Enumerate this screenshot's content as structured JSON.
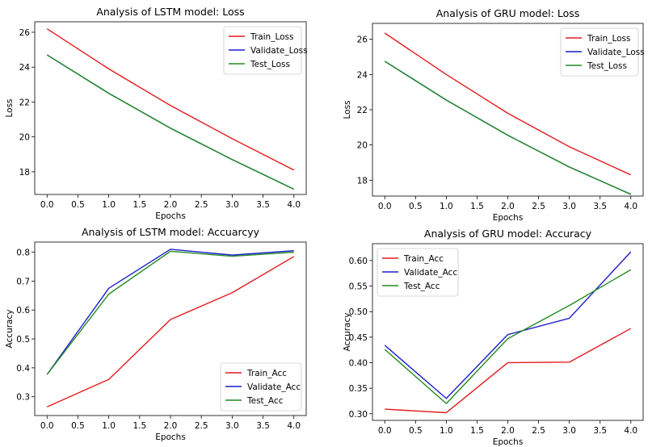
{
  "chart_data": [
    {
      "type": "line",
      "title": "Analysis of LSTM model: Loss",
      "xlabel": "Epochs",
      "ylabel": "Loss",
      "x": [
        0,
        1,
        2,
        3,
        4
      ],
      "xlim": [
        -0.2,
        4.2
      ],
      "ylim": [
        16.7,
        26.6
      ],
      "xticks": [
        "0.0",
        "0.5",
        "1.0",
        "1.5",
        "2.0",
        "2.5",
        "3.0",
        "3.5",
        "4.0"
      ],
      "yticks": [
        "18",
        "20",
        "22",
        "24",
        "26"
      ],
      "legend": "top-right",
      "series": [
        {
          "name": "Train_Loss",
          "color": "#e41a1c",
          "values": [
            26.2,
            23.9,
            21.8,
            19.9,
            18.1
          ]
        },
        {
          "name": "Validate_Loss",
          "color": "#1f1fcc",
          "values": [
            24.7,
            22.5,
            20.5,
            18.7,
            17.0
          ]
        },
        {
          "name": "Test_Loss",
          "color": "#228b22",
          "values": [
            24.7,
            22.5,
            20.5,
            18.7,
            17.0
          ]
        }
      ]
    },
    {
      "type": "line",
      "title": "Analysis of GRU model: Loss",
      "xlabel": "Epochs",
      "ylabel": "Loss",
      "x": [
        0,
        1,
        2,
        3,
        4
      ],
      "xlim": [
        -0.2,
        4.2
      ],
      "ylim": [
        17.1,
        26.9
      ],
      "xticks": [
        "0.0",
        "0.5",
        "1.0",
        "1.5",
        "2.0",
        "2.5",
        "3.0",
        "3.5",
        "4.0"
      ],
      "yticks": [
        "18",
        "20",
        "22",
        "24",
        "26"
      ],
      "legend": "top-right",
      "series": [
        {
          "name": "Train_Loss",
          "color": "#e41a1c",
          "values": [
            26.35,
            24.0,
            21.8,
            19.9,
            18.3
          ]
        },
        {
          "name": "Validate_Loss",
          "color": "#1f1fcc",
          "values": [
            24.75,
            22.55,
            20.55,
            18.75,
            17.2
          ]
        },
        {
          "name": "Test_Loss",
          "color": "#228b22",
          "values": [
            24.75,
            22.55,
            20.55,
            18.75,
            17.2
          ]
        }
      ]
    },
    {
      "type": "line",
      "title": "Analysis of LSTM model: Accuarcyy",
      "xlabel": "Epochs",
      "ylabel": "Accuracy",
      "x": [
        0,
        1,
        2,
        3,
        4
      ],
      "xlim": [
        -0.2,
        4.2
      ],
      "ylim": [
        0.235,
        0.835
      ],
      "xticks": [
        "0.0",
        "0.5",
        "1.0",
        "1.5",
        "2.0",
        "2.5",
        "3.0",
        "3.5",
        "4.0"
      ],
      "yticks": [
        "0.3",
        "0.4",
        "0.5",
        "0.6",
        "0.7",
        "0.8"
      ],
      "legend": "bottom-right",
      "series": [
        {
          "name": "Train_Acc",
          "color": "#e41a1c",
          "values": [
            0.265,
            0.36,
            0.567,
            0.66,
            0.785
          ]
        },
        {
          "name": "Validate_Acc",
          "color": "#1f1fcc",
          "values": [
            0.377,
            0.675,
            0.81,
            0.79,
            0.805
          ]
        },
        {
          "name": "Test_Acc",
          "color": "#228b22",
          "values": [
            0.377,
            0.655,
            0.803,
            0.786,
            0.8
          ]
        }
      ]
    },
    {
      "type": "line",
      "title": "Analysis of GRU model: Accuracy",
      "xlabel": "Epochs",
      "ylabel": "Accuracy",
      "x": [
        0,
        1,
        2,
        3,
        4
      ],
      "xlim": [
        -0.2,
        4.2
      ],
      "ylim": [
        0.287,
        0.633
      ],
      "xticks": [
        "0.0",
        "0.5",
        "1.0",
        "1.5",
        "2.0",
        "2.5",
        "3.0",
        "3.5",
        "4.0"
      ],
      "yticks": [
        "0.30",
        "0.35",
        "0.40",
        "0.45",
        "0.50",
        "0.55",
        "0.60"
      ],
      "legend": "top-left",
      "series": [
        {
          "name": "Train_Acc",
          "color": "#e41a1c",
          "values": [
            0.309,
            0.302,
            0.4,
            0.401,
            0.467
          ]
        },
        {
          "name": "Validate_Acc",
          "color": "#1f1fcc",
          "values": [
            0.434,
            0.33,
            0.455,
            0.487,
            0.617
          ]
        },
        {
          "name": "Test_Acc",
          "color": "#228b22",
          "values": [
            0.426,
            0.32,
            0.447,
            0.512,
            0.582
          ]
        }
      ]
    }
  ]
}
